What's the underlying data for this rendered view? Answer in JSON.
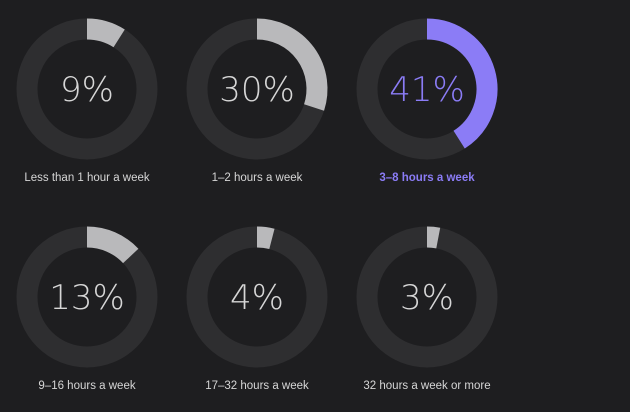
{
  "chart_data": {
    "type": "donut",
    "items": [
      {
        "label": "Less than 1 hour a week",
        "value": 9,
        "display": "9%",
        "highlight": false
      },
      {
        "label": "1–2 hours a week",
        "value": 30,
        "display": "30%",
        "highlight": false
      },
      {
        "label": "3–8 hours a week",
        "value": 41,
        "display": "41%",
        "highlight": true
      },
      {
        "label": "9–16 hours a week",
        "value": 13,
        "display": "13%",
        "highlight": false
      },
      {
        "label": "17–32 hours a week",
        "value": 4,
        "display": "4%",
        "highlight": false
      },
      {
        "label": "32 hours a week or more",
        "value": 3,
        "display": "3%",
        "highlight": false
      }
    ],
    "unit": "%",
    "max": 100
  },
  "colors": {
    "background": "#1e1e20",
    "track": "#2e2e30",
    "arc": "#b9b9bb",
    "arc_highlight": "#8b7cf6",
    "text": "#d6d6d6",
    "text_highlight": "#8b7cf6"
  }
}
